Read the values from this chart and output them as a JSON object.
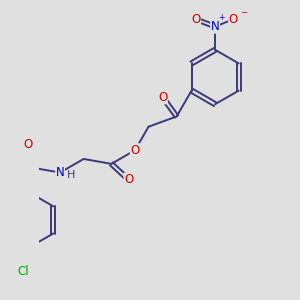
{
  "bg_color": "#e0e0e0",
  "bond_color": "#3a3a7a",
  "bond_width": 1.4,
  "atom_colors": {
    "O": "#cc0000",
    "N": "#0000cc",
    "Cl": "#00aa00",
    "H": "#3a3a7a"
  },
  "font_size": 8.5,
  "dbo": 0.055
}
